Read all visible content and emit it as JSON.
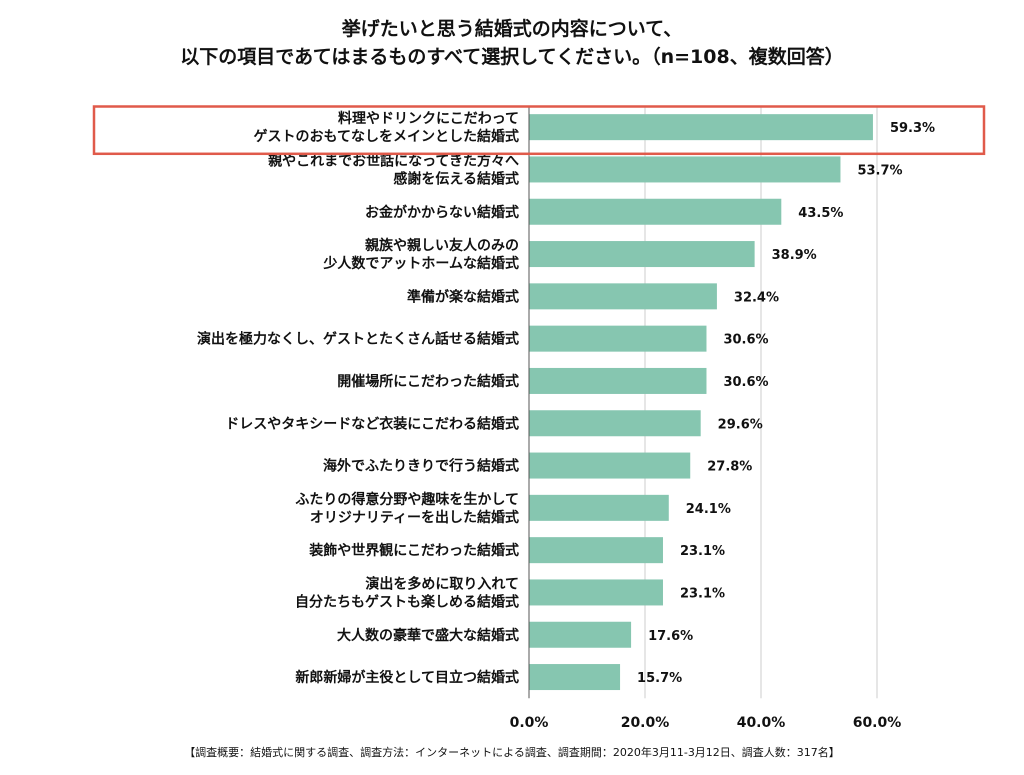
{
  "title_line1": "挙げたいと思う結婚式の内容について、",
  "title_line2": "以下の項目であてはまるものすべて選択してください。（n=108、複数回答）",
  "footnote": "【調査概要：結婚式に関する調査、調査方法：インターネットによる調査、調査期間：2020年3月11-3月12日、調査人数：317名】",
  "colors": {
    "bar": "#86c6b0",
    "highlight": "#e05a4a",
    "axis": "#555555",
    "grid": "#cccccc"
  },
  "chart_data": {
    "type": "bar",
    "orientation": "horizontal",
    "categories": [
      [
        "料理やドリンクにこだわって",
        "ゲストのおもてなしをメインとした結婚式"
      ],
      [
        "親やこれまでお世話になってきた方々へ",
        "感謝を伝える結婚式"
      ],
      [
        "お金がかからない結婚式"
      ],
      [
        "親族や親しい友人のみの",
        "少人数でアットホームな結婚式"
      ],
      [
        "準備が楽な結婚式"
      ],
      [
        "演出を極力なくし、ゲストとたくさん話せる結婚式"
      ],
      [
        "開催場所にこだわった結婚式"
      ],
      [
        "ドレスやタキシードなど衣装にこだわる結婚式"
      ],
      [
        "海外でふたりきりで行う結婚式"
      ],
      [
        "ふたりの得意分野や趣味を生かして",
        "オリジナリティーを出した結婚式"
      ],
      [
        "装飾や世界観にこだわった結婚式"
      ],
      [
        "演出を多めに取り入れて",
        "自分たちもゲストも楽しめる結婚式"
      ],
      [
        "大人数の豪華で盛大な結婚式"
      ],
      [
        "新郎新婦が主役として目立つ結婚式"
      ]
    ],
    "values": [
      59.3,
      53.7,
      43.5,
      38.9,
      32.4,
      30.6,
      30.6,
      29.6,
      27.8,
      24.1,
      23.1,
      23.1,
      17.6,
      15.7
    ],
    "value_labels": [
      "59.3%",
      "53.7%",
      "43.5%",
      "38.9%",
      "32.4%",
      "30.6%",
      "30.6%",
      "29.6%",
      "27.8%",
      "24.1%",
      "23.1%",
      "23.1%",
      "17.6%",
      "15.7%"
    ],
    "xticks": [
      0,
      20,
      40,
      60
    ],
    "xtick_labels": [
      "0.0%",
      "20.0%",
      "40.0%",
      "60.0%"
    ],
    "xlim": [
      0,
      60
    ],
    "highlighted_index": 0,
    "grid": true
  }
}
